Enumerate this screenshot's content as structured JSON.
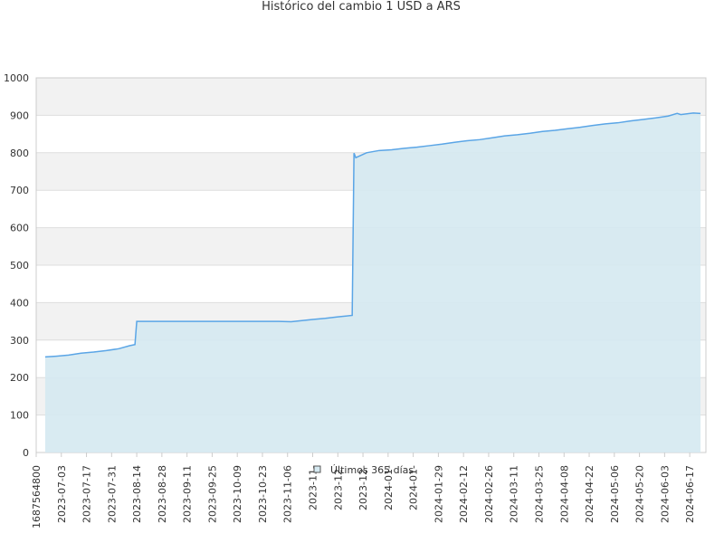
{
  "chart_data": {
    "type": "area",
    "title": "Histórico del cambio 1 USD a ARS",
    "x": [
      "2023-06-24",
      "2023-06-30",
      "2023-07-07",
      "2023-07-14",
      "2023-07-21",
      "2023-07-28",
      "2023-08-04",
      "2023-08-10",
      "2023-08-13",
      "2023-08-14",
      "2023-09-01",
      "2023-10-01",
      "2023-11-01",
      "2023-11-08",
      "2023-11-14",
      "2023-11-20",
      "2023-11-27",
      "2023-12-04",
      "2023-12-12",
      "2023-12-13",
      "2023-12-14",
      "2023-12-20",
      "2023-12-27",
      "2024-01-03",
      "2024-01-10",
      "2024-01-17",
      "2024-01-24",
      "2024-01-31",
      "2024-02-07",
      "2024-02-14",
      "2024-02-21",
      "2024-02-28",
      "2024-03-06",
      "2024-03-13",
      "2024-03-20",
      "2024-03-27",
      "2024-04-03",
      "2024-04-10",
      "2024-04-17",
      "2024-04-24",
      "2024-05-01",
      "2024-05-08",
      "2024-05-15",
      "2024-05-22",
      "2024-05-29",
      "2024-06-05",
      "2024-06-10",
      "2024-06-12",
      "2024-06-19",
      "2024-06-23"
    ],
    "series": [
      {
        "name": "Últimos 365 días",
        "color": "#5aa5e6",
        "fill": "#d5e9f1",
        "values": [
          255,
          257,
          260,
          265,
          268,
          272,
          277,
          285,
          288,
          350,
          350,
          350,
          350,
          349,
          352,
          355,
          358,
          362,
          366,
          799,
          787,
          800,
          806,
          808,
          812,
          815,
          819,
          823,
          828,
          832,
          835,
          840,
          845,
          848,
          852,
          857,
          860,
          864,
          868,
          873,
          877,
          880,
          885,
          889,
          893,
          898,
          905,
          902,
          906,
          905
        ]
      }
    ],
    "xlim": [
      "2023-06-19",
      "2024-06-26"
    ],
    "xticks": [
      {
        "value": "2023-06-19",
        "label": "1687564800"
      },
      "2023-07-03",
      "2023-07-17",
      "2023-07-31",
      "2023-08-14",
      "2023-08-28",
      "2023-09-11",
      "2023-09-25",
      "2023-10-09",
      "2023-10-23",
      "2023-11-06",
      {
        "value": "2023-11-20",
        "label": "2023-11-"
      },
      {
        "value": "2023-12-04",
        "label": "2023-12-"
      },
      {
        "value": "2023-12-18",
        "label": "2023-12-"
      },
      {
        "value": "2024-01-01",
        "label": "2024-01-"
      },
      {
        "value": "2024-01-15",
        "label": "2024-01-"
      },
      "2024-01-29",
      "2024-02-12",
      "2024-02-26",
      "2024-03-11",
      "2024-03-25",
      "2024-04-08",
      "2024-04-22",
      "2024-05-06",
      "2024-05-20",
      "2024-06-03",
      "2024-06-17"
    ],
    "ylim": [
      0,
      1000
    ],
    "yticks": [
      0,
      100,
      200,
      300,
      400,
      500,
      600,
      700,
      800,
      900,
      1000
    ],
    "grid": true
  }
}
